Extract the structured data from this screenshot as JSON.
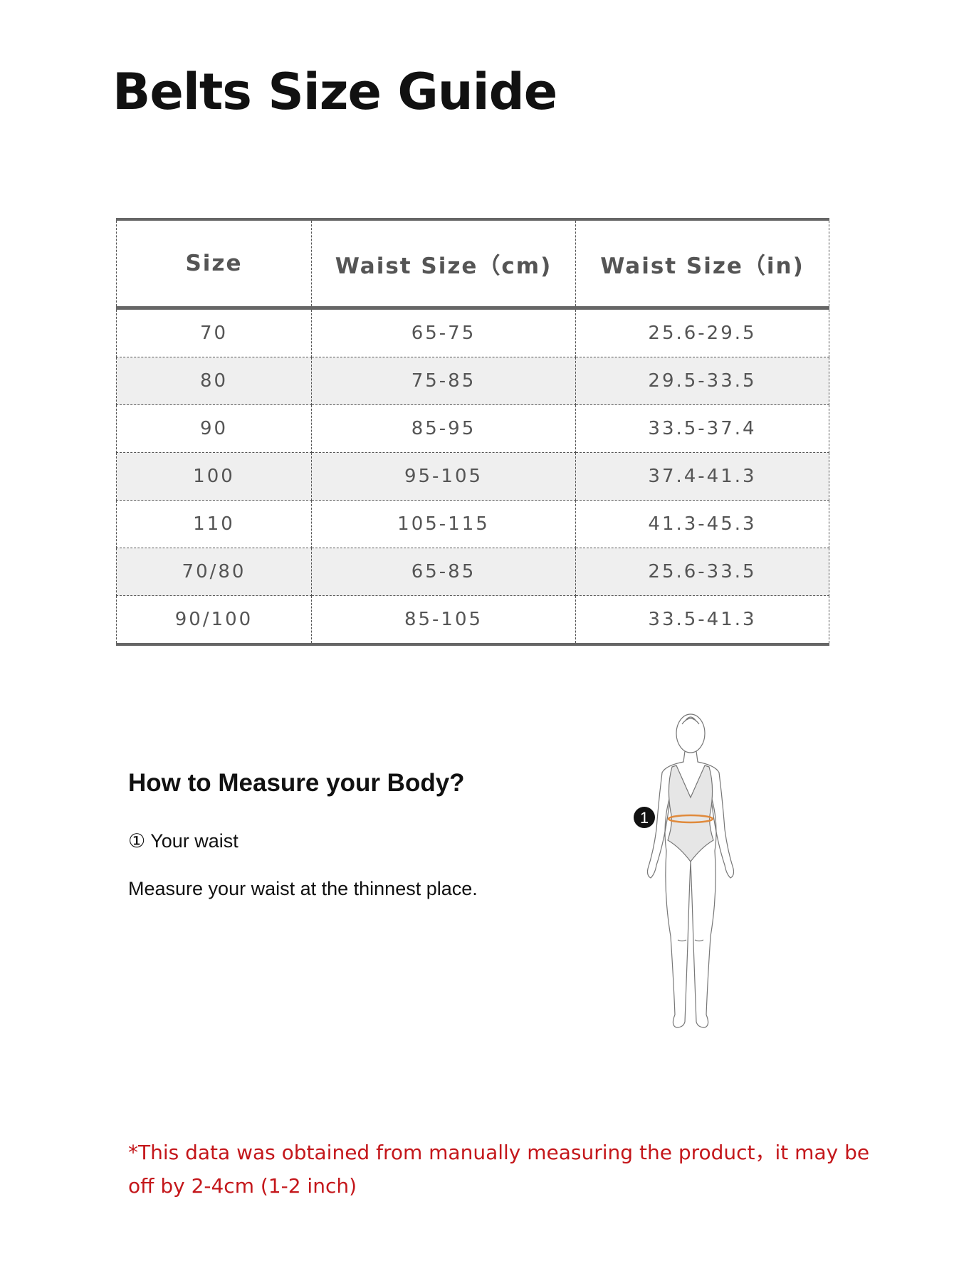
{
  "title": "Belts Size Guide",
  "table": {
    "headers": [
      "Size",
      "Waist Size（cm)",
      "Waist Size（in)"
    ],
    "rows": [
      [
        "70",
        "65-75",
        "25.6-29.5"
      ],
      [
        "80",
        "75-85",
        "29.5-33.5"
      ],
      [
        "90",
        "85-95",
        "33.5-37.4"
      ],
      [
        "100",
        "95-105",
        "37.4-41.3"
      ],
      [
        "110",
        "105-115",
        "41.3-45.3"
      ],
      [
        "70/80",
        "65-85",
        "25.6-33.5"
      ],
      [
        "90/100",
        "85-105",
        "33.5-41.3"
      ]
    ]
  },
  "measure": {
    "heading": "How to Measure your Body?",
    "step": "① Your waist",
    "instruction": "Measure your waist at the thinnest place.",
    "figure_marker": "1",
    "waist_line_color": "#e08a3c"
  },
  "note": "*This data was obtained from manually measuring the product，it may be off by 2-4cm (1-2 inch)",
  "colors": {
    "note": "#c4171b",
    "stripe": "#efefef"
  }
}
